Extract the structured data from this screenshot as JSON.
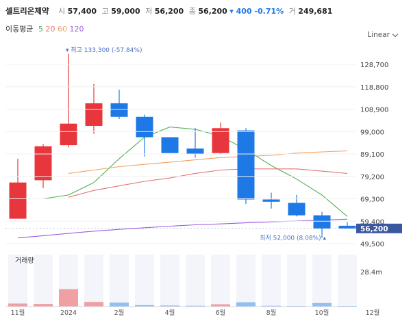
{
  "header": {
    "name": "셀트리온제약",
    "open_label": "시",
    "open": "57,400",
    "high_label": "고",
    "high": "59,000",
    "low_label": "저",
    "low": "56,200",
    "close_label": "종",
    "close": "56,200",
    "change": "▾ 400 -0.71%",
    "volume_label": "거",
    "volume": "249,681"
  },
  "ma_legend": {
    "label": "이동평균",
    "items": [
      {
        "period": "5",
        "color": "#4caf50"
      },
      {
        "period": "20",
        "color": "#e57373"
      },
      {
        "period": "60",
        "color": "#f0a060"
      },
      {
        "period": "120",
        "color": "#9c5ce0"
      }
    ]
  },
  "scale_selector": {
    "label": "Linear"
  },
  "colors": {
    "up": "#e8373c",
    "down": "#1e78e6",
    "vol_up": "#f0a0a3",
    "vol_down": "#90c0f4",
    "price_tag": "#3b57a0"
  },
  "chart_data": {
    "type": "candlestick",
    "price_axis": {
      "ticks": [
        128700,
        118800,
        108900,
        99000,
        89100,
        79200,
        69300,
        59400,
        49500
      ],
      "tick_labels": [
        "128,700",
        "118,800",
        "108,900",
        "99,000",
        "89,100",
        "79,200",
        "69,300",
        "59,400",
        "49,500"
      ]
    },
    "x_tick_labels": [
      "11월",
      "2024",
      "2월",
      "4월",
      "6월",
      "8월",
      "10월",
      "12월"
    ],
    "candles": [
      {
        "open": 60500,
        "high": 87000,
        "low": 60500,
        "close": 76500
      },
      {
        "open": 77500,
        "high": 93500,
        "low": 74000,
        "close": 92500
      },
      {
        "open": 93000,
        "high": 133300,
        "low": 92000,
        "close": 102500
      },
      {
        "open": 101500,
        "high": 120000,
        "low": 98000,
        "close": 111500
      },
      {
        "open": 111500,
        "high": 117500,
        "low": 104500,
        "close": 105500
      },
      {
        "open": 105500,
        "high": 106500,
        "low": 88000,
        "close": 96500
      },
      {
        "open": 96500,
        "high": 96500,
        "low": 89500,
        "close": 89500
      },
      {
        "open": 91500,
        "high": 100500,
        "low": 87500,
        "close": 89000
      },
      {
        "open": 89500,
        "high": 103000,
        "low": 89000,
        "close": 100500
      },
      {
        "open": 99500,
        "high": 100500,
        "low": 67000,
        "close": 69000
      },
      {
        "open": 69000,
        "high": 72000,
        "low": 65000,
        "close": 68000
      },
      {
        "open": 67500,
        "high": 71000,
        "low": 61500,
        "close": 62000
      },
      {
        "open": 62000,
        "high": 63500,
        "low": 52000,
        "close": 56200
      },
      {
        "open": 57400,
        "high": 59000,
        "low": 56200,
        "close": 56200
      }
    ],
    "moving_averages": [
      {
        "period": 5,
        "color": "#4caf50",
        "values": [
          null,
          69300,
          71000,
          76500,
          87000,
          96500,
          101000,
          100000,
          97000,
          91000,
          84000,
          78000,
          71000,
          61500
        ]
      },
      {
        "period": 20,
        "color": "#e57373",
        "values": [
          null,
          null,
          70000,
          73000,
          75000,
          77000,
          78500,
          80500,
          82000,
          82500,
          82500,
          82500,
          81500,
          80500
        ]
      },
      {
        "period": 60,
        "color": "#f0a060",
        "values": [
          null,
          null,
          80500,
          82000,
          83500,
          84500,
          85500,
          86500,
          87500,
          88000,
          88500,
          89500,
          90000,
          90500
        ]
      },
      {
        "period": 120,
        "color": "#9c5ce0",
        "values": [
          52000,
          53000,
          54000,
          55000,
          55800,
          56500,
          57200,
          57800,
          58200,
          58700,
          59100,
          59500,
          59900,
          60300
        ]
      }
    ],
    "annotations": {
      "high": {
        "value": 133300,
        "text": "▾ 최고 133,300 (-57.84%)"
      },
      "low": {
        "value": 52000,
        "text": "최저 52,000 (8.08%) ▴"
      }
    },
    "last_price": {
      "value": 56200,
      "text": "56,200"
    },
    "volume": {
      "label": "거래량",
      "axis_label": "28.4m",
      "axis_value": 28.4,
      "values": [
        2.5,
        2.2,
        14.2,
        3.8,
        3.2,
        1.2,
        0.9,
        0.7,
        1.9,
        3.5,
        0.7,
        0.5,
        2.9,
        0.25
      ]
    }
  }
}
